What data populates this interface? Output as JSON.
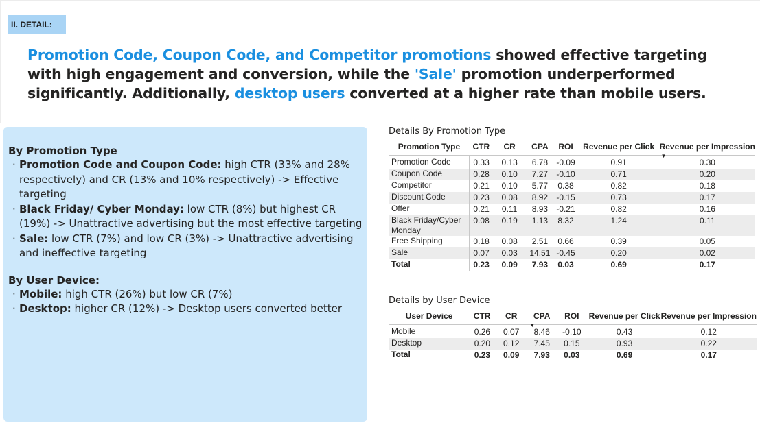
{
  "section_tag": "II. DETAIL:",
  "headline": {
    "part1_blue": "Promotion Code, Coupon Code, and Competitor promotions",
    "part2": " showed effective targeting with high engagement and conversion, while the ",
    "part3_blue": "'Sale'",
    "part4": " promotion underperformed significantly. Additionally, ",
    "part5_blue": "desktop users",
    "part6": " converted at a higher rate than mobile users."
  },
  "panel": {
    "promo_heading": "By Promotion Type",
    "promo_items": [
      {
        "bold": "Promotion Code and Coupon Code:",
        "text": " high CTR (33% and 28% respectively) and CR (13% and 10% respectively) -> Effective targeting"
      },
      {
        "bold": "Black Friday/ Cyber Monday:",
        "text": " low CTR (8%) but highest CR (19%) -> Unattractive advertising but the most effective targeting"
      },
      {
        "bold": "Sale:",
        "text": " low CTR (7%) and low CR (3%) -> Unattractive advertising and ineffective targeting"
      }
    ],
    "device_heading": "By User Device:",
    "device_items": [
      {
        "bold": "Mobile:",
        "text": " high CTR (26%) but low CR (7%)"
      },
      {
        "bold": "Desktop:",
        "text": " higher CR (12%) -> Desktop users converted better"
      }
    ]
  },
  "promo_table": {
    "title": "Details By Promotion Type",
    "headers": [
      "Promotion Type",
      "CTR",
      "CR",
      "CPA",
      "ROI",
      "Revenue per Click",
      "Revenue per Impression"
    ],
    "rows": [
      [
        "Promotion Code",
        "0.33",
        "0.13",
        "6.78",
        "-0.09",
        "0.91",
        "0.30"
      ],
      [
        "Coupon Code",
        "0.28",
        "0.10",
        "7.27",
        "-0.10",
        "0.71",
        "0.20"
      ],
      [
        "Competitor",
        "0.21",
        "0.10",
        "5.77",
        "0.38",
        "0.82",
        "0.18"
      ],
      [
        "Discount Code",
        "0.23",
        "0.08",
        "8.92",
        "-0.15",
        "0.73",
        "0.17"
      ],
      [
        "Offer",
        "0.21",
        "0.11",
        "8.93",
        "-0.21",
        "0.82",
        "0.16"
      ],
      [
        "Black Friday/Cyber Monday",
        "0.08",
        "0.19",
        "1.13",
        "8.32",
        "1.24",
        "0.11"
      ],
      [
        "Free Shipping",
        "0.18",
        "0.08",
        "2.51",
        "0.66",
        "0.39",
        "0.05"
      ],
      [
        "Sale",
        "0.07",
        "0.03",
        "14.51",
        "-0.45",
        "0.20",
        "0.02"
      ]
    ],
    "total": [
      "Total",
      "0.23",
      "0.09",
      "7.93",
      "0.03",
      "0.69",
      "0.17"
    ]
  },
  "device_table": {
    "title": "Details by User Device",
    "headers": [
      "User Device",
      "CTR",
      "CR",
      "CPA",
      "ROI",
      "Revenue per Click",
      "Revenue per Impression"
    ],
    "rows": [
      [
        "Mobile",
        "0.26",
        "0.07",
        "8.46",
        "-0.10",
        "0.43",
        "0.12"
      ],
      [
        "Desktop",
        "0.20",
        "0.12",
        "7.45",
        "0.15",
        "0.93",
        "0.22"
      ]
    ],
    "total": [
      "Total",
      "0.23",
      "0.09",
      "7.93",
      "0.03",
      "0.69",
      "0.17"
    ]
  },
  "icons": {
    "sort_desc": "sort-descending-icon"
  },
  "colors": {
    "accent_blue": "#1a8fe0",
    "tag_bg": "#a9d4f5",
    "panel_bg": "#cde8fb",
    "band_bg": "#ececec"
  }
}
